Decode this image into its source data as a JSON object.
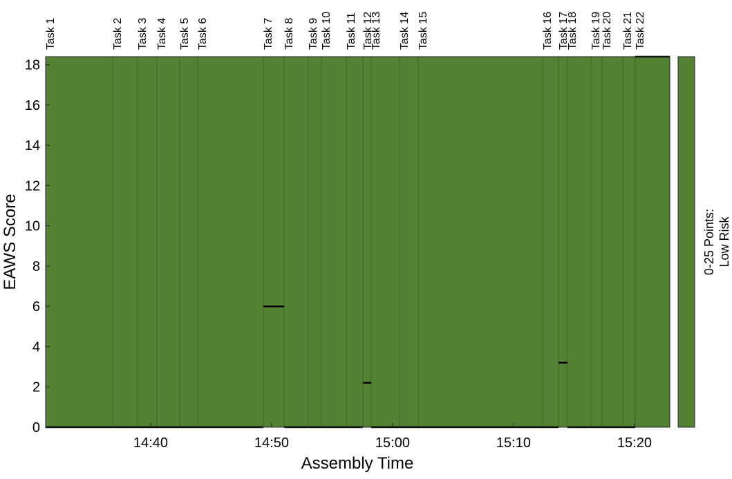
{
  "chart_data": {
    "type": "task-timeline",
    "xlabel": "Assembly Time",
    "ylabel": "EAWS Score",
    "categories": [
      "Task 1",
      "Task 2",
      "Task 3",
      "Task 4",
      "Task 5",
      "Task 6",
      "Task 7",
      "Task 8",
      "Task 9",
      "Task 10",
      "Task 11",
      "Task 12",
      "Task 13",
      "Task 14",
      "Task 15",
      "Task 16",
      "Task 17",
      "Task 18",
      "Task 19",
      "Task 20",
      "Task 21",
      "Task 22"
    ],
    "x": [
      "14:31:19",
      "14:36:51",
      "14:38:55",
      "14:40:31",
      "14:42:24",
      "14:43:53",
      "14:49:19",
      "14:51:02",
      "14:53:02",
      "14:54:07",
      "14:56:10",
      "14:57:33",
      "14:58:14",
      "15:00:34",
      "15:02:07",
      "15:12:24",
      "15:13:43",
      "15:14:27",
      "15:16:24",
      "15:17:19",
      "15:19:02",
      "15:20:03"
    ],
    "values": [
      0,
      0,
      0,
      0,
      0,
      0,
      6,
      0,
      0,
      0,
      0,
      2.2,
      0,
      0,
      0,
      0,
      3.2,
      0,
      0,
      0,
      0,
      18.4
    ],
    "color": "#548235",
    "line_color": "#000000",
    "xlim": [
      "14:31:19",
      "15:22:55"
    ],
    "xticks": [
      "14:40",
      "14:50",
      "15:00",
      "15:10",
      "15:20"
    ],
    "ylim": [
      0,
      18.4
    ],
    "yticks": [
      0,
      2,
      4,
      6,
      8,
      10,
      12,
      14,
      16,
      18
    ],
    "colorbar_label": [
      "0-25 Points:",
      "Low Risk"
    ]
  }
}
